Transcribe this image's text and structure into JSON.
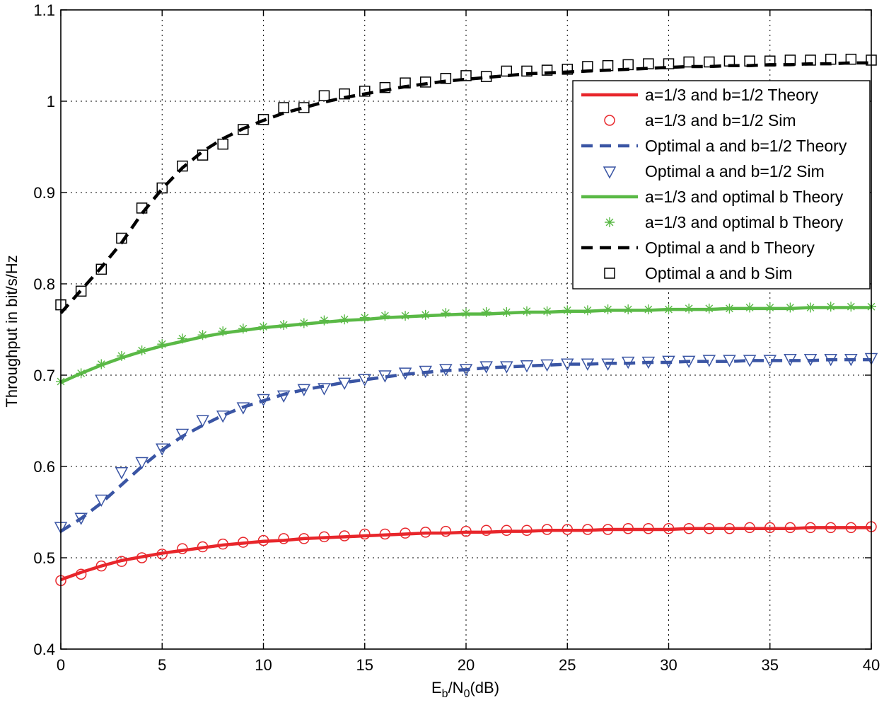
{
  "chart_data": {
    "type": "line",
    "xlabel": {
      "main": "E",
      "sub1": "b",
      "mid": "/N",
      "sub2": "0",
      "suffix": "(dB)"
    },
    "ylabel": "Throughput in bit/s/Hz",
    "xlim": [
      0,
      40
    ],
    "ylim": [
      0.4,
      1.1
    ],
    "xticks": [
      0,
      5,
      10,
      15,
      20,
      25,
      30,
      35,
      40
    ],
    "yticks": [
      0.4,
      0.5,
      0.6,
      0.7,
      0.8,
      0.9,
      1,
      1.1
    ],
    "grid": true,
    "legend_position": "top-right",
    "x": [
      0,
      1,
      2,
      3,
      4,
      5,
      6,
      7,
      8,
      9,
      10,
      11,
      12,
      13,
      14,
      15,
      16,
      17,
      18,
      19,
      20,
      21,
      22,
      23,
      24,
      25,
      26,
      27,
      28,
      29,
      30,
      31,
      32,
      33,
      34,
      35,
      36,
      37,
      38,
      39,
      40
    ],
    "series": [
      {
        "name": "a=1/3 and b=1/2 Theory",
        "style": "solid",
        "marker": "none",
        "color": "#e8262b",
        "values": [
          0.476,
          0.484,
          0.491,
          0.497,
          0.501,
          0.505,
          0.508,
          0.511,
          0.514,
          0.516,
          0.518,
          0.519,
          0.521,
          0.522,
          0.523,
          0.524,
          0.525,
          0.526,
          0.527,
          0.527,
          0.528,
          0.528,
          0.529,
          0.529,
          0.53,
          0.53,
          0.53,
          0.531,
          0.531,
          0.531,
          0.531,
          0.532,
          0.532,
          0.532,
          0.532,
          0.532,
          0.532,
          0.533,
          0.533,
          0.533,
          0.533
        ]
      },
      {
        "name": "a=1/3 and b=1/2 Sim",
        "style": "none",
        "marker": "circle",
        "color": "#e8262b",
        "values": [
          0.475,
          0.482,
          0.491,
          0.496,
          0.5,
          0.504,
          0.51,
          0.512,
          0.515,
          0.517,
          0.519,
          0.521,
          0.521,
          0.523,
          0.524,
          0.526,
          0.526,
          0.527,
          0.528,
          0.529,
          0.529,
          0.53,
          0.53,
          0.53,
          0.531,
          0.531,
          0.531,
          0.531,
          0.532,
          0.532,
          0.532,
          0.532,
          0.532,
          0.532,
          0.533,
          0.533,
          0.533,
          0.533,
          0.533,
          0.533,
          0.534
        ]
      },
      {
        "name": "Optimal a and b=1/2 Theory",
        "style": "dashed",
        "marker": "none",
        "color": "#3a55a4",
        "values": [
          0.529,
          0.543,
          0.56,
          0.58,
          0.6,
          0.618,
          0.633,
          0.645,
          0.656,
          0.665,
          0.672,
          0.679,
          0.684,
          0.688,
          0.692,
          0.695,
          0.698,
          0.701,
          0.703,
          0.705,
          0.706,
          0.708,
          0.709,
          0.71,
          0.711,
          0.712,
          0.712,
          0.713,
          0.713,
          0.714,
          0.714,
          0.715,
          0.715,
          0.715,
          0.716,
          0.716,
          0.716,
          0.716,
          0.717,
          0.717,
          0.717
        ]
      },
      {
        "name": "Optimal a and b=1/2 Sim",
        "style": "none",
        "marker": "triangle-down",
        "color": "#3a55a4",
        "values": [
          0.534,
          0.544,
          0.564,
          0.594,
          0.605,
          0.62,
          0.636,
          0.651,
          0.656,
          0.665,
          0.674,
          0.678,
          0.685,
          0.686,
          0.692,
          0.696,
          0.7,
          0.703,
          0.705,
          0.707,
          0.707,
          0.71,
          0.71,
          0.711,
          0.712,
          0.713,
          0.713,
          0.713,
          0.715,
          0.715,
          0.716,
          0.716,
          0.717,
          0.717,
          0.717,
          0.717,
          0.718,
          0.718,
          0.718,
          0.718,
          0.719
        ]
      },
      {
        "name": "a=1/3 and optimal b Theory",
        "style": "solid",
        "marker": "none",
        "color": "#5ab946",
        "values": [
          0.692,
          0.702,
          0.711,
          0.719,
          0.726,
          0.732,
          0.737,
          0.742,
          0.746,
          0.749,
          0.752,
          0.754,
          0.756,
          0.758,
          0.76,
          0.761,
          0.763,
          0.764,
          0.765,
          0.766,
          0.767,
          0.767,
          0.768,
          0.769,
          0.769,
          0.77,
          0.77,
          0.771,
          0.771,
          0.771,
          0.772,
          0.772,
          0.772,
          0.773,
          0.773,
          0.773,
          0.773,
          0.774,
          0.774,
          0.774,
          0.774
        ]
      },
      {
        "name": "a=1/3 and optimal b Theory",
        "style": "none",
        "marker": "asterisk",
        "color": "#5ab946",
        "values": [
          0.693,
          0.702,
          0.712,
          0.721,
          0.727,
          0.734,
          0.74,
          0.744,
          0.748,
          0.751,
          0.753,
          0.755,
          0.757,
          0.76,
          0.761,
          0.763,
          0.765,
          0.765,
          0.766,
          0.768,
          0.768,
          0.769,
          0.769,
          0.77,
          0.77,
          0.771,
          0.771,
          0.772,
          0.772,
          0.772,
          0.772,
          0.773,
          0.773,
          0.773,
          0.774,
          0.774,
          0.774,
          0.774,
          0.775,
          0.775,
          0.775
        ]
      },
      {
        "name": "Optimal a and b Theory",
        "style": "dashed",
        "marker": "none",
        "color": "#000000",
        "values": [
          0.768,
          0.793,
          0.818,
          0.845,
          0.877,
          0.904,
          0.927,
          0.945,
          0.959,
          0.97,
          0.979,
          0.987,
          0.993,
          0.999,
          1.004,
          1.008,
          1.012,
          1.016,
          1.019,
          1.022,
          1.024,
          1.026,
          1.028,
          1.03,
          1.031,
          1.032,
          1.033,
          1.034,
          1.035,
          1.036,
          1.037,
          1.038,
          1.038,
          1.039,
          1.039,
          1.04,
          1.04,
          1.041,
          1.041,
          1.042,
          1.042
        ]
      },
      {
        "name": "Optimal a and b Sim",
        "style": "none",
        "marker": "square",
        "color": "#000000",
        "values": [
          0.777,
          0.792,
          0.816,
          0.85,
          0.883,
          0.905,
          0.929,
          0.941,
          0.953,
          0.969,
          0.98,
          0.993,
          0.993,
          1.006,
          1.008,
          1.011,
          1.015,
          1.02,
          1.021,
          1.025,
          1.028,
          1.027,
          1.033,
          1.033,
          1.034,
          1.035,
          1.038,
          1.039,
          1.04,
          1.041,
          1.041,
          1.043,
          1.043,
          1.044,
          1.044,
          1.044,
          1.045,
          1.045,
          1.046,
          1.046,
          1.045
        ]
      }
    ]
  }
}
